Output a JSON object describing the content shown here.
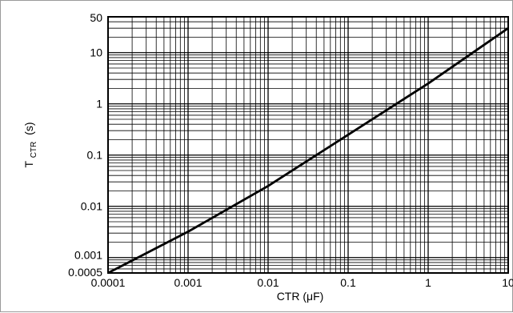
{
  "chart_data": {
    "type": "line",
    "title": "",
    "xlabel": "CTR (μF)",
    "ylabel_main": "T",
    "ylabel_sub": "CTR",
    "ylabel_unit": "(s)",
    "x_scale": "log",
    "y_scale": "log",
    "xlim": [
      0.0001,
      10
    ],
    "ylim": [
      0.0005,
      50
    ],
    "x_ticks": [
      {
        "value": 0.0001,
        "label": "0.0001"
      },
      {
        "value": 0.001,
        "label": "0.001"
      },
      {
        "value": 0.01,
        "label": "0.01"
      },
      {
        "value": 0.1,
        "label": "0.1"
      },
      {
        "value": 1,
        "label": "1"
      },
      {
        "value": 10,
        "label": "10"
      }
    ],
    "y_ticks": [
      {
        "value": 0.0005,
        "label": "0.0005"
      },
      {
        "value": 0.001,
        "label": "0.001"
      },
      {
        "value": 0.01,
        "label": "0.01"
      },
      {
        "value": 0.1,
        "label": "0.1"
      },
      {
        "value": 1,
        "label": "1"
      },
      {
        "value": 10,
        "label": "10"
      },
      {
        "value": 50,
        "label": "50"
      }
    ],
    "grid": true,
    "series": [
      {
        "x": [
          0.0001,
          0.001,
          0.01,
          0.1,
          1,
          10
        ],
        "y": [
          0.0005,
          0.0032,
          0.025,
          0.25,
          2.5,
          30
        ]
      }
    ],
    "line_color": "#000000"
  }
}
